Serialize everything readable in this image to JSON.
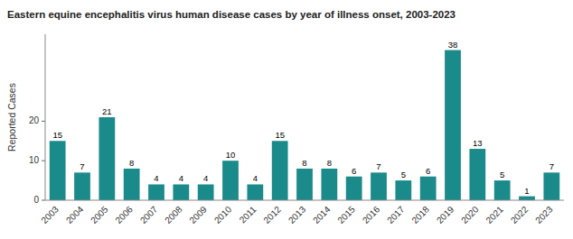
{
  "chart_data": {
    "type": "bar",
    "title": "Eastern equine encephalitis virus human disease cases by year of illness onset, 2003-2023",
    "ylabel": "Reported Cases",
    "categories": [
      "2003",
      "2004",
      "2005",
      "2006",
      "2007",
      "2008",
      "2009",
      "2010",
      "2011",
      "2012",
      "2013",
      "2014",
      "2015",
      "2016",
      "2017",
      "2018",
      "2019",
      "2020",
      "2021",
      "2022",
      "2023"
    ],
    "values": [
      15,
      7,
      21,
      8,
      4,
      4,
      4,
      10,
      4,
      15,
      8,
      8,
      6,
      7,
      5,
      6,
      38,
      13,
      5,
      1,
      7
    ],
    "color": "#1a8a8a",
    "ylim": [
      0,
      42
    ],
    "yticks": [
      0,
      10,
      20
    ],
    "grid": false,
    "data_labels": true
  }
}
